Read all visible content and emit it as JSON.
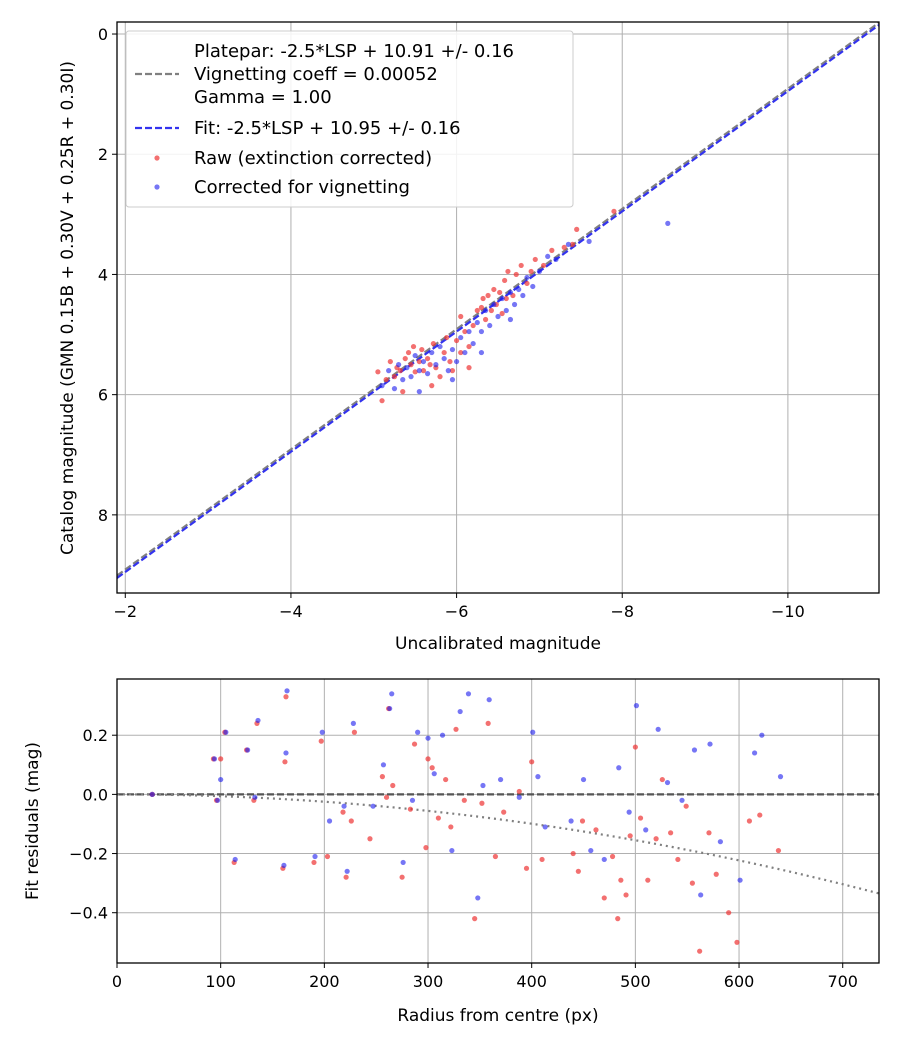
{
  "chart_data": [
    {
      "type": "scatter",
      "title": "",
      "xlabel": "Uncalibrated magnitude",
      "ylabel": "Catalog magnitude (GMN 0.15B + 0.30V + 0.25R + 0.30I)",
      "xlim": [
        -1.9,
        -11.1
      ],
      "ylim": [
        9.3,
        -0.2
      ],
      "xticks": [
        -2,
        -4,
        -6,
        -8,
        -10
      ],
      "xtick_labels": [
        "−2",
        "−4",
        "−6",
        "−8",
        "−10"
      ],
      "yticks": [
        0,
        2,
        4,
        6,
        8
      ],
      "ytick_labels": [
        "0",
        "2",
        "4",
        "6",
        "8"
      ],
      "grid": true,
      "legend_position": "top-left",
      "legend": {
        "platepar_lines": [
          "Platepar: -2.5*LSP + 10.91 +/- 0.16",
          "Vignetting coeff = 0.00052",
          "Gamma = 1.00"
        ],
        "fit": "Fit: -2.5*LSP + 10.95 +/- 0.16",
        "raw": "Raw (extinction corrected)",
        "corrected": "Corrected for vignetting"
      },
      "lines": [
        {
          "name": "Platepar",
          "slope": 1.0,
          "intercept": 10.91,
          "color": "#808080",
          "style": "dashed"
        },
        {
          "name": "Fit",
          "slope": 1.0,
          "intercept": 10.95,
          "color": "#3333ee",
          "style": "dashed"
        }
      ],
      "series": [
        {
          "name": "Raw (extinction corrected)",
          "color": "#ee3333",
          "points": [
            [
              -5.05,
              5.62
            ],
            [
              -5.1,
              6.1
            ],
            [
              -5.15,
              5.75
            ],
            [
              -5.2,
              5.45
            ],
            [
              -5.25,
              5.7
            ],
            [
              -5.28,
              5.55
            ],
            [
              -5.32,
              5.6
            ],
            [
              -5.35,
              5.95
            ],
            [
              -5.38,
              5.4
            ],
            [
              -5.42,
              5.3
            ],
            [
              -5.45,
              5.5
            ],
            [
              -5.5,
              5.62
            ],
            [
              -5.55,
              5.45
            ],
            [
              -5.58,
              5.25
            ],
            [
              -5.6,
              5.6
            ],
            [
              -5.65,
              5.4
            ],
            [
              -5.68,
              5.5
            ],
            [
              -5.72,
              5.15
            ],
            [
              -5.75,
              5.55
            ],
            [
              -5.8,
              5.7
            ],
            [
              -5.85,
              5.3
            ],
            [
              -5.88,
              5.05
            ],
            [
              -5.92,
              5.45
            ],
            [
              -5.95,
              5.6
            ],
            [
              -6.0,
              5.1
            ],
            [
              -6.05,
              5.3
            ],
            [
              -6.1,
              4.95
            ],
            [
              -6.15,
              5.2
            ],
            [
              -6.2,
              4.85
            ],
            [
              -6.25,
              4.6
            ],
            [
              -6.3,
              4.55
            ],
            [
              -6.32,
              4.4
            ],
            [
              -6.35,
              4.75
            ],
            [
              -6.38,
              4.35
            ],
            [
              -6.42,
              4.6
            ],
            [
              -6.45,
              4.25
            ],
            [
              -6.48,
              4.5
            ],
            [
              -6.52,
              4.3
            ],
            [
              -6.55,
              4.65
            ],
            [
              -6.58,
              4.1
            ],
            [
              -6.6,
              4.4
            ],
            [
              -6.62,
              3.95
            ],
            [
              -6.68,
              4.35
            ],
            [
              -6.72,
              4.0
            ],
            [
              -6.78,
              3.85
            ],
            [
              -6.85,
              4.15
            ],
            [
              -6.9,
              3.95
            ],
            [
              -6.95,
              3.75
            ],
            [
              -7.05,
              3.85
            ],
            [
              -7.15,
              3.6
            ],
            [
              -7.3,
              3.55
            ],
            [
              -7.4,
              3.5
            ],
            [
              -7.45,
              3.25
            ],
            [
              -7.9,
              2.95
            ],
            [
              -5.7,
              5.85
            ],
            [
              -6.15,
              5.55
            ],
            [
              -5.48,
              5.2
            ],
            [
              -6.05,
              4.7
            ]
          ]
        },
        {
          "name": "Corrected for vignetting",
          "color": "#1a1aee",
          "points": [
            [
              -5.1,
              5.85
            ],
            [
              -5.18,
              5.6
            ],
            [
              -5.25,
              5.9
            ],
            [
              -5.3,
              5.5
            ],
            [
              -5.35,
              5.75
            ],
            [
              -5.4,
              5.55
            ],
            [
              -5.45,
              5.7
            ],
            [
              -5.5,
              5.35
            ],
            [
              -5.55,
              5.6
            ],
            [
              -5.6,
              5.45
            ],
            [
              -5.65,
              5.65
            ],
            [
              -5.7,
              5.3
            ],
            [
              -5.75,
              5.5
            ],
            [
              -5.8,
              5.2
            ],
            [
              -5.85,
              5.4
            ],
            [
              -5.9,
              5.6
            ],
            [
              -5.95,
              5.25
            ],
            [
              -6.0,
              5.45
            ],
            [
              -6.05,
              5.05
            ],
            [
              -6.1,
              5.3
            ],
            [
              -6.15,
              4.95
            ],
            [
              -6.2,
              5.15
            ],
            [
              -6.25,
              4.8
            ],
            [
              -6.3,
              4.95
            ],
            [
              -6.35,
              4.6
            ],
            [
              -6.4,
              4.85
            ],
            [
              -6.45,
              4.5
            ],
            [
              -6.5,
              4.7
            ],
            [
              -6.55,
              4.4
            ],
            [
              -6.6,
              4.6
            ],
            [
              -6.65,
              4.3
            ],
            [
              -6.7,
              4.5
            ],
            [
              -6.75,
              4.25
            ],
            [
              -6.8,
              4.35
            ],
            [
              -6.85,
              4.05
            ],
            [
              -6.92,
              4.2
            ],
            [
              -7.0,
              3.95
            ],
            [
              -7.1,
              3.7
            ],
            [
              -7.2,
              3.75
            ],
            [
              -7.35,
              3.5
            ],
            [
              -7.6,
              3.45
            ],
            [
              -8.55,
              3.15
            ],
            [
              -5.55,
              5.95
            ],
            [
              -5.95,
              5.75
            ],
            [
              -6.3,
              5.3
            ],
            [
              -6.65,
              4.75
            ]
          ]
        }
      ]
    },
    {
      "type": "scatter",
      "title": "",
      "xlabel": "Radius from centre (px)",
      "ylabel": "Fit residuals (mag)",
      "xlim": [
        0,
        735
      ],
      "ylim": [
        -0.57,
        0.39
      ],
      "xticks": [
        0,
        100,
        200,
        300,
        400,
        500,
        600,
        700
      ],
      "xtick_labels": [
        "0",
        "100",
        "200",
        "300",
        "400",
        "500",
        "600",
        "700"
      ],
      "yticks": [
        0.2,
        0.0,
        -0.2,
        -0.4
      ],
      "ytick_labels": [
        "0.2",
        "0.0",
        "−0.2",
        "−0.4"
      ],
      "grid": true,
      "lines": [
        {
          "name": "zero",
          "type": "constant",
          "value": 0.0,
          "color": "#555555",
          "style": "dashed"
        },
        {
          "name": "vignetting",
          "type": "quadratic",
          "a": -6.2e-07,
          "color": "#808080",
          "style": "dotted"
        }
      ],
      "series": [
        {
          "name": "Raw (extinction corrected)",
          "color": "#ee3333",
          "points": [
            [
              34,
              0.0
            ],
            [
              93,
              0.12
            ],
            [
              96,
              -0.02
            ],
            [
              100,
              0.12
            ],
            [
              104,
              0.21
            ],
            [
              113,
              -0.23
            ],
            [
              125,
              0.15
            ],
            [
              132,
              -0.02
            ],
            [
              135,
              0.24
            ],
            [
              160,
              -0.25
            ],
            [
              162,
              0.11
            ],
            [
              163,
              0.33
            ],
            [
              190,
              -0.23
            ],
            [
              197,
              0.18
            ],
            [
              203,
              -0.21
            ],
            [
              218,
              -0.06
            ],
            [
              221,
              -0.28
            ],
            [
              226,
              -0.09
            ],
            [
              229,
              0.21
            ],
            [
              244,
              -0.15
            ],
            [
              256,
              0.06
            ],
            [
              260,
              -0.01
            ],
            [
              262,
              0.29
            ],
            [
              266,
              0.03
            ],
            [
              275,
              -0.28
            ],
            [
              283,
              -0.05
            ],
            [
              287,
              0.17
            ],
            [
              298,
              -0.18
            ],
            [
              300,
              0.12
            ],
            [
              304,
              0.09
            ],
            [
              310,
              -0.08
            ],
            [
              317,
              0.05
            ],
            [
              322,
              -0.11
            ],
            [
              327,
              0.22
            ],
            [
              335,
              -0.02
            ],
            [
              345,
              -0.42
            ],
            [
              352,
              -0.03
            ],
            [
              358,
              0.24
            ],
            [
              365,
              -0.21
            ],
            [
              373,
              -0.06
            ],
            [
              388,
              0.01
            ],
            [
              395,
              -0.25
            ],
            [
              400,
              0.11
            ],
            [
              410,
              -0.22
            ],
            [
              440,
              -0.2
            ],
            [
              445,
              -0.26
            ],
            [
              449,
              -0.09
            ],
            [
              462,
              -0.12
            ],
            [
              470,
              -0.35
            ],
            [
              478,
              -0.21
            ],
            [
              483,
              -0.42
            ],
            [
              486,
              -0.29
            ],
            [
              491,
              -0.34
            ],
            [
              495,
              -0.14
            ],
            [
              500,
              0.16
            ],
            [
              505,
              -0.08
            ],
            [
              512,
              -0.29
            ],
            [
              520,
              -0.15
            ],
            [
              526,
              0.05
            ],
            [
              534,
              -0.13
            ],
            [
              541,
              -0.22
            ],
            [
              549,
              -0.04
            ],
            [
              555,
              -0.3
            ],
            [
              562,
              -0.53
            ],
            [
              571,
              -0.13
            ],
            [
              578,
              -0.27
            ],
            [
              590,
              -0.4
            ],
            [
              598,
              -0.5
            ],
            [
              610,
              -0.09
            ],
            [
              620,
              -0.07
            ],
            [
              638,
              -0.19
            ]
          ]
        },
        {
          "name": "Corrected for vignetting",
          "color": "#1a1aee",
          "points": [
            [
              34,
              0.0
            ],
            [
              94,
              0.12
            ],
            [
              97,
              -0.02
            ],
            [
              100,
              0.05
            ],
            [
              105,
              0.21
            ],
            [
              114,
              -0.22
            ],
            [
              126,
              0.15
            ],
            [
              133,
              -0.01
            ],
            [
              136,
              0.25
            ],
            [
              161,
              -0.24
            ],
            [
              163,
              0.14
            ],
            [
              164,
              0.35
            ],
            [
              191,
              -0.21
            ],
            [
              198,
              0.21
            ],
            [
              205,
              -0.09
            ],
            [
              219,
              -0.04
            ],
            [
              222,
              -0.26
            ],
            [
              228,
              0.24
            ],
            [
              247,
              -0.04
            ],
            [
              257,
              0.1
            ],
            [
              263,
              0.29
            ],
            [
              265,
              0.34
            ],
            [
              276,
              -0.23
            ],
            [
              285,
              -0.02
            ],
            [
              290,
              0.21
            ],
            [
              300,
              0.19
            ],
            [
              306,
              0.07
            ],
            [
              314,
              0.2
            ],
            [
              323,
              -0.19
            ],
            [
              331,
              0.28
            ],
            [
              339,
              0.34
            ],
            [
              348,
              -0.35
            ],
            [
              353,
              0.03
            ],
            [
              359,
              0.32
            ],
            [
              370,
              0.05
            ],
            [
              388,
              -0.01
            ],
            [
              401,
              0.21
            ],
            [
              406,
              0.06
            ],
            [
              413,
              -0.11
            ],
            [
              438,
              -0.09
            ],
            [
              450,
              0.05
            ],
            [
              457,
              -0.19
            ],
            [
              470,
              -0.22
            ],
            [
              484,
              0.09
            ],
            [
              494,
              -0.06
            ],
            [
              501,
              0.3
            ],
            [
              510,
              -0.12
            ],
            [
              522,
              0.22
            ],
            [
              531,
              0.04
            ],
            [
              545,
              -0.02
            ],
            [
              557,
              0.15
            ],
            [
              563,
              -0.34
            ],
            [
              572,
              0.17
            ],
            [
              582,
              -0.16
            ],
            [
              601,
              -0.29
            ],
            [
              615,
              0.14
            ],
            [
              622,
              0.2
            ],
            [
              640,
              0.06
            ]
          ]
        }
      ]
    }
  ]
}
